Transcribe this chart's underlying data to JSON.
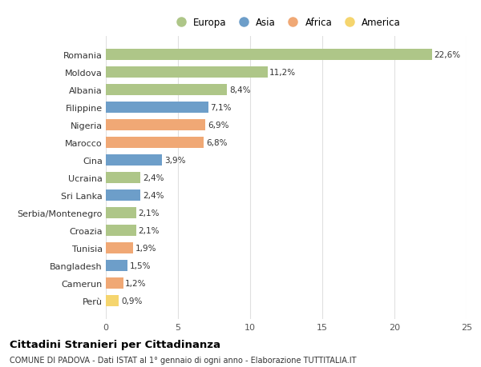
{
  "countries": [
    "Romania",
    "Moldova",
    "Albania",
    "Filippine",
    "Nigeria",
    "Marocco",
    "Cina",
    "Ucraina",
    "Sri Lanka",
    "Serbia/Montenegro",
    "Croazia",
    "Tunisia",
    "Bangladesh",
    "Camerun",
    "Perù"
  ],
  "values": [
    22.6,
    11.2,
    8.4,
    7.1,
    6.9,
    6.8,
    3.9,
    2.4,
    2.4,
    2.1,
    2.1,
    1.9,
    1.5,
    1.2,
    0.9
  ],
  "labels": [
    "22,6%",
    "11,2%",
    "8,4%",
    "7,1%",
    "6,9%",
    "6,8%",
    "3,9%",
    "2,4%",
    "2,4%",
    "2,1%",
    "2,1%",
    "1,9%",
    "1,5%",
    "1,2%",
    "0,9%"
  ],
  "continents": [
    "Europa",
    "Europa",
    "Europa",
    "Asia",
    "Africa",
    "Africa",
    "Asia",
    "Europa",
    "Asia",
    "Europa",
    "Europa",
    "Africa",
    "Asia",
    "Africa",
    "America"
  ],
  "continent_colors": {
    "Europa": "#aec688",
    "Asia": "#6d9ec9",
    "Africa": "#f0a875",
    "America": "#f5d56e"
  },
  "legend_order": [
    "Europa",
    "Asia",
    "Africa",
    "America"
  ],
  "title": "Cittadini Stranieri per Cittadinanza",
  "subtitle": "COMUNE DI PADOVA - Dati ISTAT al 1° gennaio di ogni anno - Elaborazione TUTTITALIA.IT",
  "xlim": [
    0,
    25
  ],
  "xticks": [
    0,
    5,
    10,
    15,
    20,
    25
  ],
  "background_color": "#ffffff",
  "grid_color": "#e0e0e0",
  "bar_height": 0.65
}
